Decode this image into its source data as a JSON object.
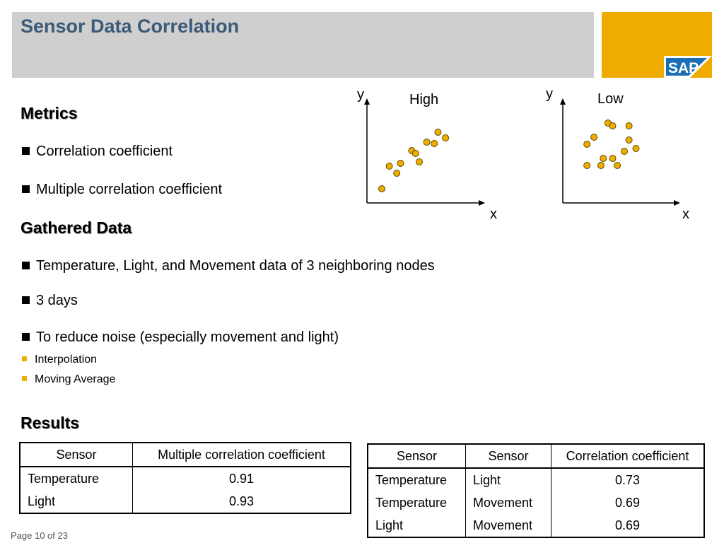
{
  "header": {
    "title": "Sensor Data Correlation"
  },
  "logo": {
    "text": "SAP",
    "color": "#f0ab00"
  },
  "sections": {
    "metrics": {
      "heading": "Metrics",
      "bullets": [
        "Correlation coefficient",
        "Multiple correlation coefficient"
      ]
    },
    "gathered": {
      "heading": "Gathered Data",
      "bullets": [
        "Temperature, Light, and Movement data of 3 neighboring nodes",
        "3 days",
        "To reduce noise (especially movement and light)"
      ],
      "sub_bullets": [
        "Interpolation",
        "Moving Average"
      ]
    },
    "results": {
      "heading": "Results"
    }
  },
  "table1": {
    "headers": [
      "Sensor",
      "Multiple correlation coefficient"
    ],
    "rows": [
      [
        "Temperature",
        "0.91"
      ],
      [
        "Light",
        "0.93"
      ]
    ]
  },
  "table2": {
    "headers": [
      "Sensor",
      "Sensor",
      "Correlation coefficient"
    ],
    "rows": [
      [
        "Temperature",
        "Light",
        "0.73"
      ],
      [
        "Temperature",
        "Movement",
        "0.69"
      ],
      [
        "Light",
        "Movement",
        "0.69"
      ]
    ]
  },
  "chart_data": [
    {
      "type": "scatter",
      "title": "High",
      "xlabel": "x",
      "ylabel": "y",
      "axis_ticks": false,
      "marker_color": "#f0ab00",
      "points": [
        [
          0,
          0
        ],
        [
          2,
          1.6
        ],
        [
          4,
          1.1
        ],
        [
          5,
          1.8
        ],
        [
          8,
          2.7
        ],
        [
          10,
          1.9
        ],
        [
          9,
          2.5
        ],
        [
          12,
          3.3
        ],
        [
          14,
          3.2
        ],
        [
          15,
          4.0
        ],
        [
          17,
          3.6
        ]
      ]
    },
    {
      "type": "scatter",
      "title": "Low",
      "xlabel": "x",
      "ylabel": "y",
      "axis_ticks": false,
      "marker_color": "#f0ab00",
      "points": [
        [
          4,
          6.5
        ],
        [
          7,
          7
        ],
        [
          10,
          5
        ],
        [
          11,
          5.5
        ],
        [
          13,
          8
        ],
        [
          15,
          7.8
        ],
        [
          15,
          5.5
        ],
        [
          17,
          5
        ],
        [
          20,
          6
        ],
        [
          22,
          6.8
        ],
        [
          22,
          7.8
        ],
        [
          25,
          6.2
        ],
        [
          4,
          5
        ]
      ]
    }
  ],
  "footer": {
    "page_label": "Page 10 of 23"
  }
}
